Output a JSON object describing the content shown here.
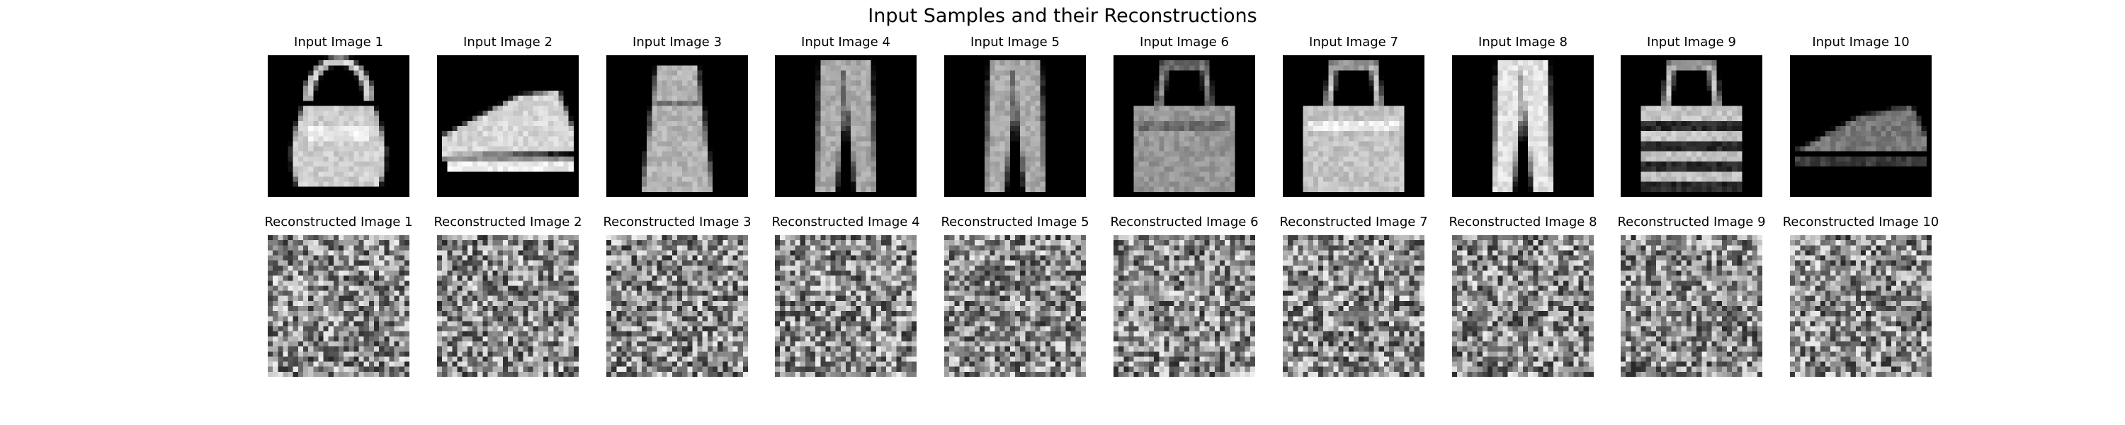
{
  "figure": {
    "title": "Input Samples and their Reconstructions"
  },
  "rows": [
    {
      "kind": "input",
      "titles": [
        "Input Image 1",
        "Input Image 2",
        "Input Image 3",
        "Input Image 4",
        "Input Image 5",
        "Input Image 6",
        "Input Image 7",
        "Input Image 8",
        "Input Image 9",
        "Input Image 10"
      ],
      "contents": [
        "handbag",
        "sneaker",
        "dress",
        "trouser",
        "trouser",
        "bag",
        "bag",
        "trouser",
        "bag",
        "sandal"
      ]
    },
    {
      "kind": "reconstruction",
      "titles": [
        "Reconstructed Image 1",
        "Reconstructed Image 2",
        "Reconstructed Image 3",
        "Reconstructed Image 4",
        "Reconstructed Image 5",
        "Reconstructed Image 6",
        "Reconstructed Image 7",
        "Reconstructed Image 8",
        "Reconstructed Image 9",
        "Reconstructed Image 10"
      ],
      "contents": [
        "noise",
        "noise",
        "noise",
        "noise",
        "noise",
        "noise",
        "noise",
        "noise",
        "noise",
        "noise"
      ]
    }
  ],
  "image_grid": {
    "pixels": 28,
    "colormap": "gray",
    "background": "#000000"
  }
}
